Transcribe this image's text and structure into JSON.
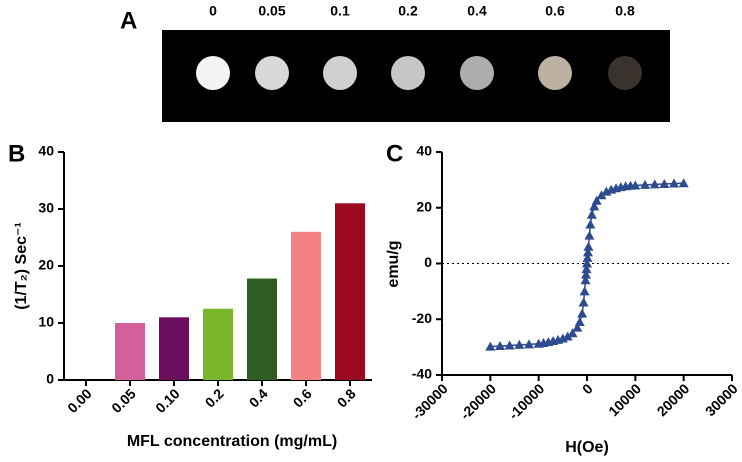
{
  "panel_a": {
    "label": "A",
    "labels": [
      "0",
      "0.05",
      "0.1",
      "0.2",
      "0.4",
      "0.6",
      "0.8"
    ],
    "colors": [
      "#f4f4f4",
      "#d8d8d8",
      "#d0d0d0",
      "#c6c6c6",
      "#adadad",
      "#bdb2a2",
      "#3a332d"
    ]
  },
  "chart_data": [
    {
      "type": "bar",
      "panel_label": "B",
      "x_label": "MFL concentration (mg/mL)",
      "y_label": "(1/T₂) Sec⁻¹",
      "categories": [
        "0.00",
        "0.05",
        "0.10",
        "0.2",
        "0.4",
        "0.6",
        "0.8"
      ],
      "values": [
        0,
        10,
        11,
        12.5,
        17.8,
        26,
        31
      ],
      "colors": [
        "#cccccc",
        "#d3609a",
        "#6b0f5c",
        "#7ab62a",
        "#2f5e23",
        "#f58282",
        "#9b0a1e"
      ],
      "ylim": [
        0,
        40
      ],
      "yticks": [
        0,
        10,
        20,
        30,
        40
      ]
    },
    {
      "type": "scatter",
      "panel_label": "C",
      "x_label": "H(Oe)",
      "y_label": "emu/g",
      "color": "#2e4b8f",
      "x": [
        -20000,
        -18000,
        -16000,
        -14000,
        -12000,
        -10000,
        -9000,
        -8000,
        -7000,
        -6000,
        -5000,
        -4000,
        -3000,
        -2000,
        -1500,
        -1000,
        -700,
        -500,
        -300,
        -200,
        -100,
        0,
        100,
        200,
        300,
        500,
        700,
        1000,
        1500,
        2000,
        3000,
        4000,
        5000,
        6000,
        7000,
        8000,
        9000,
        10000,
        12000,
        14000,
        16000,
        18000,
        20000
      ],
      "values": [
        -29.8,
        -29.6,
        -29.4,
        -29.2,
        -29,
        -28.8,
        -28.5,
        -28.2,
        -27.8,
        -27.4,
        -26.9,
        -26.2,
        -25,
        -23,
        -21,
        -18,
        -14,
        -10,
        -6,
        -4,
        -2,
        0,
        2,
        4,
        6,
        10,
        14,
        17.5,
        20.5,
        22.5,
        24.5,
        25.8,
        26.5,
        27,
        27.4,
        27.7,
        27.9,
        28,
        28.2,
        28.4,
        28.5,
        28.7,
        28.8
      ],
      "hline": 0,
      "xlim": [
        -30000,
        30000
      ],
      "xticks": [
        -30000,
        -20000,
        -10000,
        0,
        10000,
        20000,
        30000
      ],
      "ylim": [
        -40,
        40
      ],
      "yticks": [
        -40,
        -20,
        0,
        20,
        40
      ]
    }
  ]
}
